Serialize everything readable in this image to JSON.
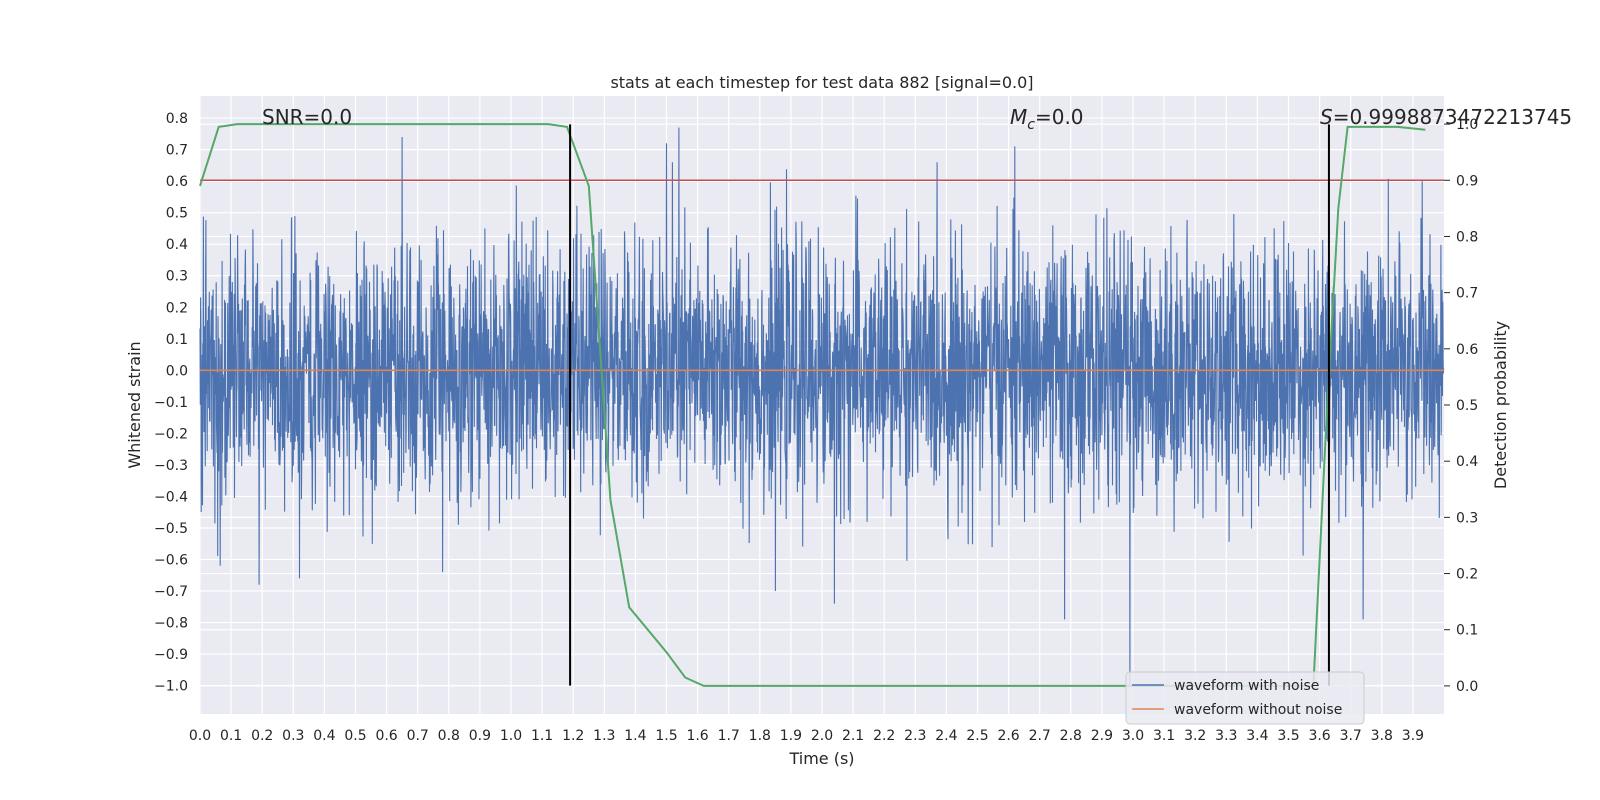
{
  "chart_data": {
    "type": "line",
    "title": "stats at each timestep for test data 882 [signal=0.0]",
    "xlabel": "Time (s)",
    "ylabel": "Whitened strain",
    "y2label": "Detection probability",
    "xlim": [
      0.0,
      4.0
    ],
    "ylim": [
      -1.09,
      0.87
    ],
    "y2lim": [
      -0.05,
      1.05
    ],
    "x_ticks": [
      0.0,
      0.1,
      0.2,
      0.3,
      0.4,
      0.5,
      0.6,
      0.7,
      0.8,
      0.9,
      1.0,
      1.1,
      1.2,
      1.3,
      1.4,
      1.5,
      1.6,
      1.7,
      1.8,
      1.9,
      2.0,
      2.1,
      2.2,
      2.3,
      2.4,
      2.5,
      2.6,
      2.7,
      2.8,
      2.9,
      3.0,
      3.1,
      3.2,
      3.3,
      3.4,
      3.5,
      3.6,
      3.7,
      3.8,
      3.9
    ],
    "x_tick_labels": [
      "0.0",
      "0.1",
      "0.2",
      "0.3",
      "0.4",
      "0.5",
      "0.6",
      "0.7",
      "0.8",
      "0.9",
      "1.0",
      "1.1",
      "1.2",
      "1.3",
      "1.4",
      "1.5",
      "1.6",
      "1.7",
      "1.8",
      "1.9",
      "2.0",
      "2.1",
      "2.2",
      "2.3",
      "2.4",
      "2.5",
      "2.6",
      "2.7",
      "2.8",
      "2.9",
      "3.0",
      "3.1",
      "3.2",
      "3.3",
      "3.4",
      "3.5",
      "3.6",
      "3.7",
      "3.8",
      "3.9"
    ],
    "y_ticks": [
      0.8,
      0.7,
      0.6,
      0.5,
      0.4,
      0.3,
      0.2,
      0.1,
      0.0,
      -0.1,
      -0.2,
      -0.3,
      -0.4,
      -0.5,
      -0.6,
      -0.7,
      -0.8,
      -0.9,
      -1.0
    ],
    "y_tick_labels": [
      "0.8",
      "0.7",
      "0.6",
      "0.5",
      "0.4",
      "0.3",
      "0.2",
      "0.1",
      "0.0",
      "−0.1",
      "−0.2",
      "−0.3",
      "−0.4",
      "−0.5",
      "−0.6",
      "−0.7",
      "−0.8",
      "−0.9",
      "−1.0"
    ],
    "y2_ticks": [
      1.0,
      0.9,
      0.8,
      0.7,
      0.6,
      0.5,
      0.4,
      0.3,
      0.2,
      0.1,
      0.0
    ],
    "y2_tick_labels": [
      "1.0",
      "0.9",
      "0.8",
      "0.7",
      "0.6",
      "0.5",
      "0.4",
      "0.3",
      "0.2",
      "0.1",
      "0.0"
    ],
    "grid": true,
    "legend_placement": "lower-right",
    "annotations": {
      "snr": "SNR=0.0",
      "mc_symbol": "M",
      "mc_sub": "c",
      "mc_value": "=0.0",
      "s_symbol": "S",
      "s_value": "=0.9998873472213745"
    },
    "series": [
      {
        "name": "waveform with noise",
        "color": "#4c72b0",
        "axis": "left",
        "kind": "noise",
        "sample_count": 4000,
        "approx_std": 0.2,
        "notable_peaks": [
          {
            "x": 0.65,
            "y": 0.74
          },
          {
            "x": 1.54,
            "y": 0.77
          },
          {
            "x": 1.5,
            "y": 0.72
          },
          {
            "x": 2.62,
            "y": 0.71
          },
          {
            "x": 0.19,
            "y": -0.68
          },
          {
            "x": 0.32,
            "y": -0.66
          },
          {
            "x": 0.78,
            "y": -0.64
          },
          {
            "x": 1.85,
            "y": -0.7
          },
          {
            "x": 2.04,
            "y": -0.74
          },
          {
            "x": 2.78,
            "y": -0.79
          },
          {
            "x": 2.99,
            "y": -1.0
          },
          {
            "x": 3.74,
            "y": -0.79
          },
          {
            "x": 3.93,
            "y": 0.6
          }
        ]
      },
      {
        "name": "waveform without noise",
        "color": "#dd8452",
        "axis": "left",
        "x": [
          0.0,
          4.0
        ],
        "y": [
          0.0,
          0.0
        ]
      },
      {
        "name": "",
        "color": "#55a868",
        "axis": "right",
        "x": [
          0.0,
          0.06,
          0.12,
          0.3,
          0.6,
          0.9,
          1.05,
          1.12,
          1.18,
          1.25,
          1.32,
          1.38,
          1.44,
          1.5,
          1.56,
          1.62,
          1.7,
          2.0,
          2.5,
          3.0,
          3.5,
          3.58,
          3.62,
          3.66,
          3.69,
          3.75,
          3.85,
          3.94
        ],
        "y": [
          0.89,
          0.995,
          1.0,
          1.0,
          1.0,
          1.0,
          1.0,
          1.0,
          0.995,
          0.89,
          0.33,
          0.14,
          0.1,
          0.06,
          0.015,
          0.0,
          0.0,
          0.0,
          0.0,
          0.0,
          0.0,
          0.0,
          0.45,
          0.85,
          0.995,
          0.995,
          0.995,
          0.99
        ]
      }
    ],
    "threshold_line": {
      "axis": "right",
      "value": 0.9,
      "color": "#c44e52"
    },
    "vertical_lines": [
      {
        "x": 1.19,
        "y_from": -1.0,
        "y_to": 0.78,
        "color": "#000000"
      },
      {
        "x": 3.63,
        "y_from": -1.0,
        "y_to": 0.78,
        "color": "#000000"
      }
    ],
    "legend": [
      {
        "label": "waveform with noise",
        "color": "#4c72b0"
      },
      {
        "label": "waveform without noise",
        "color": "#dd8452"
      }
    ]
  }
}
